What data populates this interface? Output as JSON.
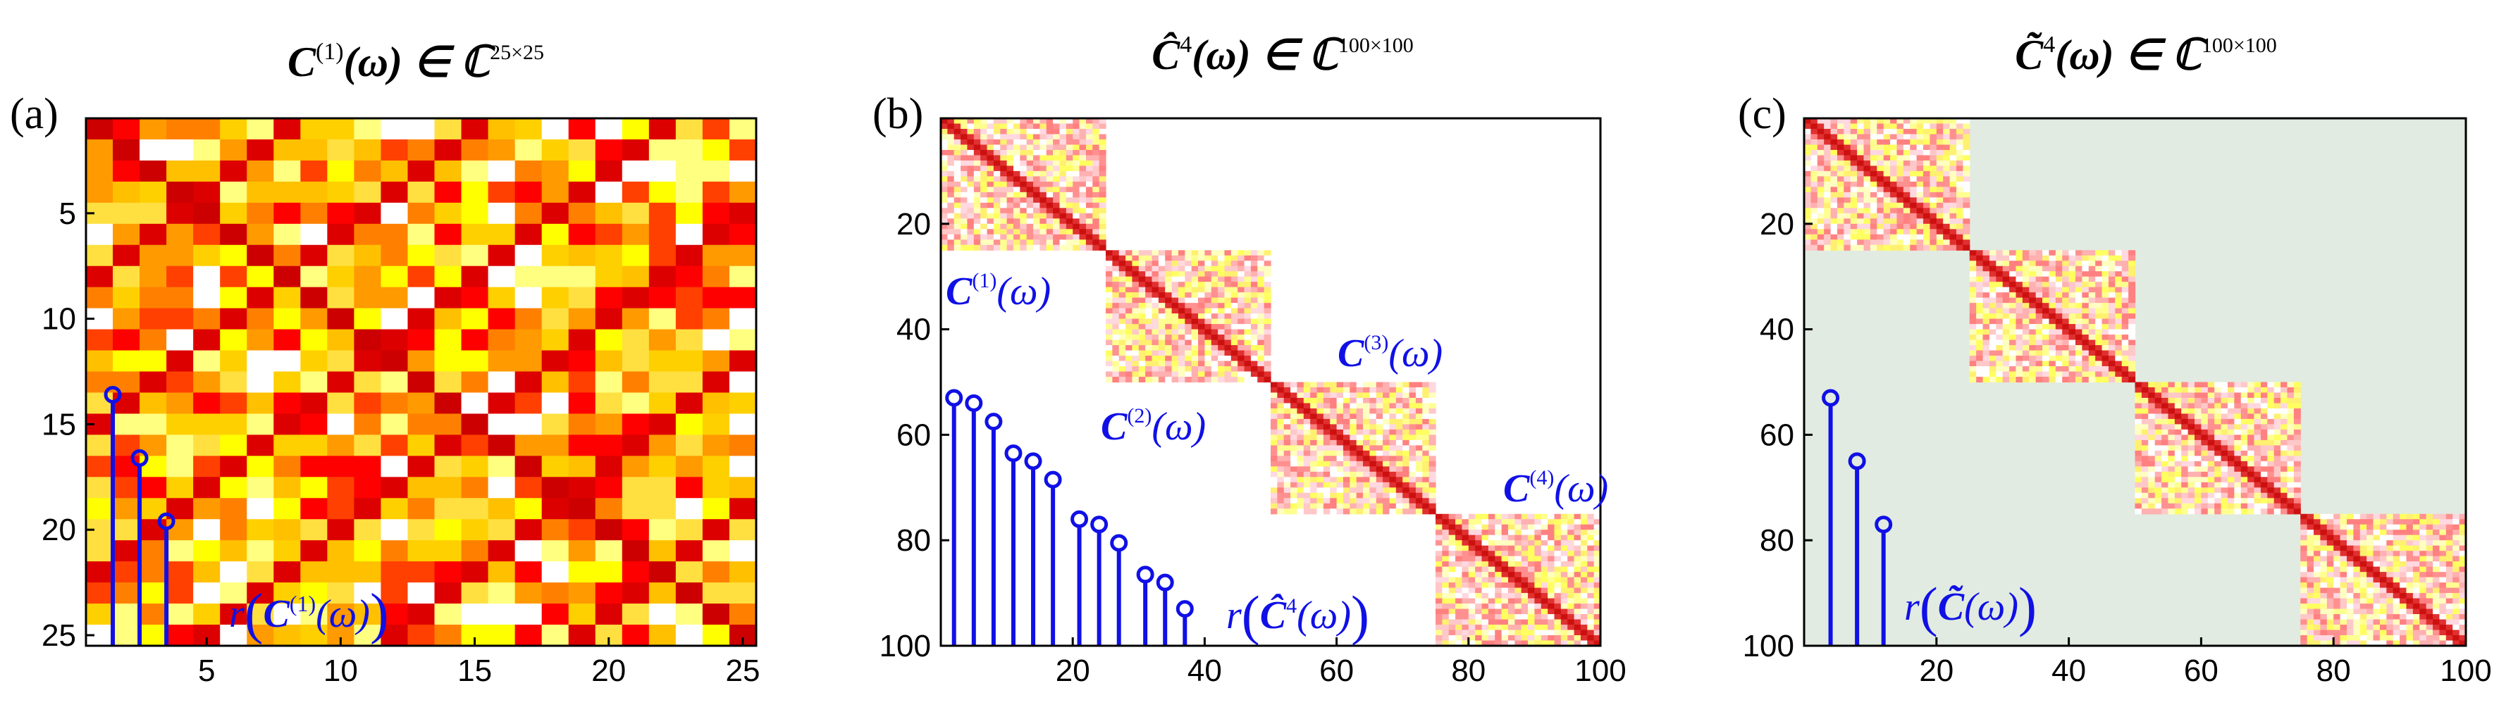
{
  "colors": {
    "stem": "#1010e6",
    "bg_c": "#e1ebe1",
    "frame": "#000000"
  },
  "chart_data": [
    {
      "panel": "(a)",
      "type": "heatmap",
      "title_main": "C",
      "title_sup": "(1)",
      "title_arg": "(ω) ∈ ℂ",
      "title_dim": "25×25",
      "matrix_size": 25,
      "xlim": [
        0.5,
        25.5
      ],
      "ylim": [
        25.5,
        0.5
      ],
      "xticks": [
        5,
        10,
        15,
        20,
        25
      ],
      "yticks": [
        5,
        10,
        15,
        20,
        25
      ],
      "xtick_labels": [
        "5",
        "10",
        "15",
        "20",
        "25"
      ],
      "ytick_labels": [
        "5",
        "10",
        "15",
        "20",
        "25"
      ],
      "blocks": [
        {
          "start": 1,
          "size": 25
        }
      ],
      "stems": [
        {
          "x": 1.5,
          "y": 13.6
        },
        {
          "x": 2.5,
          "y": 16.6
        },
        {
          "x": 3.5,
          "y": 19.6
        }
      ],
      "annotations": [
        {
          "text": "r(C(1)(ω))",
          "x": 5.2,
          "y": 24.3
        }
      ]
    },
    {
      "panel": "(b)",
      "type": "heatmap",
      "title_main": "Ĉ",
      "title_sup": "4",
      "title_arg": "(ω) ∈ ℂ",
      "title_dim": "100×100",
      "matrix_size": 100,
      "xlim": [
        0,
        100
      ],
      "ylim": [
        100,
        0
      ],
      "xticks": [
        20,
        40,
        60,
        80,
        100
      ],
      "yticks": [
        20,
        40,
        60,
        80,
        100
      ],
      "xtick_labels": [
        "20",
        "40",
        "60",
        "80",
        "100"
      ],
      "ytick_labels": [
        "20",
        "40",
        "60",
        "80",
        "100"
      ],
      "blocks": [
        {
          "start": 1,
          "size": 25
        },
        {
          "start": 26,
          "size": 25
        },
        {
          "start": 51,
          "size": 25
        },
        {
          "start": 76,
          "size": 25
        }
      ],
      "stems": [
        {
          "x": 2,
          "y": 53
        },
        {
          "x": 5,
          "y": 54
        },
        {
          "x": 8,
          "y": 57.5
        },
        {
          "x": 11,
          "y": 63.5
        },
        {
          "x": 14,
          "y": 65
        },
        {
          "x": 17,
          "y": 68.5
        },
        {
          "x": 21,
          "y": 76
        },
        {
          "x": 24,
          "y": 77
        },
        {
          "x": 27,
          "y": 80.5
        },
        {
          "x": 31,
          "y": 86.5
        },
        {
          "x": 34,
          "y": 88
        },
        {
          "x": 37,
          "y": 93
        }
      ],
      "annotations": [
        {
          "text": "C(1)(ω)",
          "x": 1,
          "y": 34
        },
        {
          "text": "C(2)(ω)",
          "x": 27,
          "y": 59
        },
        {
          "text": "C(3)(ω)",
          "x": 53,
          "y": 34
        },
        {
          "text": "C(4)(ω)",
          "x": 78,
          "y": 59
        },
        {
          "text": "r(Ĉ4(ω))",
          "x": 43,
          "y": 94
        }
      ]
    },
    {
      "panel": "(c)",
      "type": "heatmap",
      "title_main": "C̃",
      "title_sup": "4",
      "title_arg": "(ω) ∈ ℂ",
      "title_dim": "100×100",
      "matrix_size": 100,
      "xlim": [
        0,
        100
      ],
      "ylim": [
        100,
        0
      ],
      "xticks": [
        20,
        40,
        60,
        80,
        100
      ],
      "yticks": [
        20,
        40,
        60,
        80,
        100
      ],
      "xtick_labels": [
        "20",
        "40",
        "60",
        "80",
        "100"
      ],
      "ytick_labels": [
        "20",
        "40",
        "60",
        "80",
        "100"
      ],
      "blocks": [
        {
          "start": 1,
          "size": 25
        },
        {
          "start": 26,
          "size": 25
        },
        {
          "start": 51,
          "size": 25
        },
        {
          "start": 76,
          "size": 25
        }
      ],
      "stems": [
        {
          "x": 4,
          "y": 53
        },
        {
          "x": 8,
          "y": 65
        },
        {
          "x": 12,
          "y": 77
        }
      ],
      "annotations": [
        {
          "text": "r(C̃(ω))",
          "x": 15,
          "y": 95
        }
      ]
    }
  ]
}
